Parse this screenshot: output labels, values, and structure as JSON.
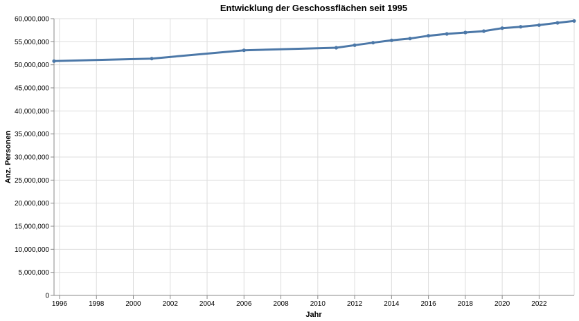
{
  "chart_data": {
    "type": "line",
    "title": "Entwicklung der Geschossflächen seit 1995",
    "xlabel": "Jahr",
    "ylabel": "Anz. Personen",
    "xlim": [
      1995.7,
      2023.9
    ],
    "ylim": [
      0,
      60000000
    ],
    "x_ticks": [
      1996,
      1998,
      2000,
      2002,
      2004,
      2006,
      2008,
      2010,
      2012,
      2014,
      2016,
      2018,
      2020,
      2022
    ],
    "y_ticks": [
      0,
      5000000,
      10000000,
      15000000,
      20000000,
      25000000,
      30000000,
      35000000,
      40000000,
      45000000,
      50000000,
      55000000,
      60000000
    ],
    "x_tick_labels": [
      "1996",
      "1998",
      "2000",
      "2002",
      "2004",
      "2006",
      "2008",
      "2010",
      "2012",
      "2014",
      "2016",
      "2018",
      "2020",
      "2022"
    ],
    "y_tick_labels": [
      "0",
      "5,000,000",
      "10,000,000",
      "15,000,000",
      "20,000,000",
      "25,000,000",
      "30,000,000",
      "35,000,000",
      "40,000,000",
      "45,000,000",
      "50,000,000",
      "55,000,000",
      "60,000,000"
    ],
    "grid": true,
    "series": [
      {
        "color": "#4c78a8",
        "x": [
          1995.7,
          2001,
          2006,
          2011,
          2012,
          2013,
          2014,
          2015,
          2016,
          2017,
          2018,
          2019,
          2020,
          2021,
          2022,
          2023,
          2023.9
        ],
        "values": [
          50800000,
          51350000,
          53150000,
          53700000,
          54250000,
          54800000,
          55300000,
          55700000,
          56300000,
          56700000,
          57000000,
          57300000,
          57950000,
          58250000,
          58600000,
          59100000,
          59500000
        ]
      }
    ]
  }
}
